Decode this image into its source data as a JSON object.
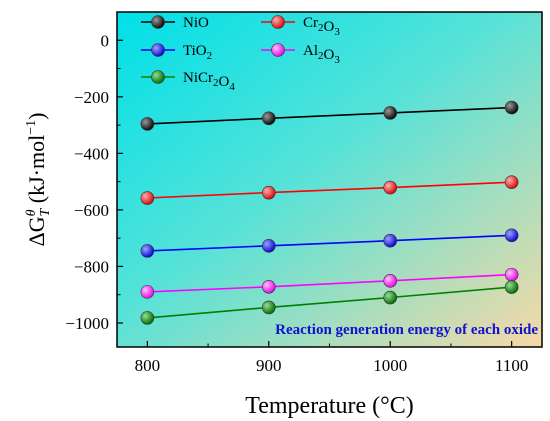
{
  "chart_data": {
    "type": "line",
    "title": "",
    "xlabel": "Temperature (°C)",
    "ylabel": {
      "delta": "ΔG",
      "sup": "θ",
      "sub": "T",
      "unit_open": " (kJ·mol",
      "unit_sup": "−1",
      "unit_close": ")"
    },
    "x": [
      800,
      900,
      1000,
      1100
    ],
    "xticks": [
      "800",
      "900",
      "1000",
      "1100"
    ],
    "xlim": [
      775,
      1125
    ],
    "yticks": [
      "0",
      "−200",
      "−400",
      "−600",
      "−800",
      "−1000"
    ],
    "ytick_values": [
      0,
      -200,
      -400,
      -600,
      -800,
      -1000
    ],
    "ylim": [
      -1085,
      100
    ],
    "annotation": "Reaction generation energy of each oxide",
    "legend_position": "top-left",
    "grid": false,
    "series": [
      {
        "name": "NiO",
        "label": {
          "base": "NiO"
        },
        "color": "#000000",
        "values": [
          -296,
          -276,
          -257,
          -238
        ]
      },
      {
        "name": "Cr2O3",
        "label": {
          "base": "Cr",
          "sub1": "2",
          "mid": "O",
          "sub2": "3"
        },
        "color": "#ff0000",
        "values": [
          -558,
          -539,
          -521,
          -502
        ]
      },
      {
        "name": "TiO2",
        "label": {
          "base": "TiO",
          "sub1": "2"
        },
        "color": "#0000ff",
        "values": [
          -745,
          -727,
          -709,
          -690
        ]
      },
      {
        "name": "Al2O3",
        "label": {
          "base": "Al",
          "sub1": "2",
          "mid": "O",
          "sub2": "3"
        },
        "color": "#ff00ff",
        "values": [
          -890,
          -872,
          -851,
          -829
        ]
      },
      {
        "name": "NiCr2O4",
        "label": {
          "base": "NiCr",
          "sub1": "2",
          "mid": "O",
          "sub2": "4"
        },
        "color": "#008000",
        "values": [
          -982,
          -945,
          -910,
          -873
        ]
      }
    ]
  }
}
